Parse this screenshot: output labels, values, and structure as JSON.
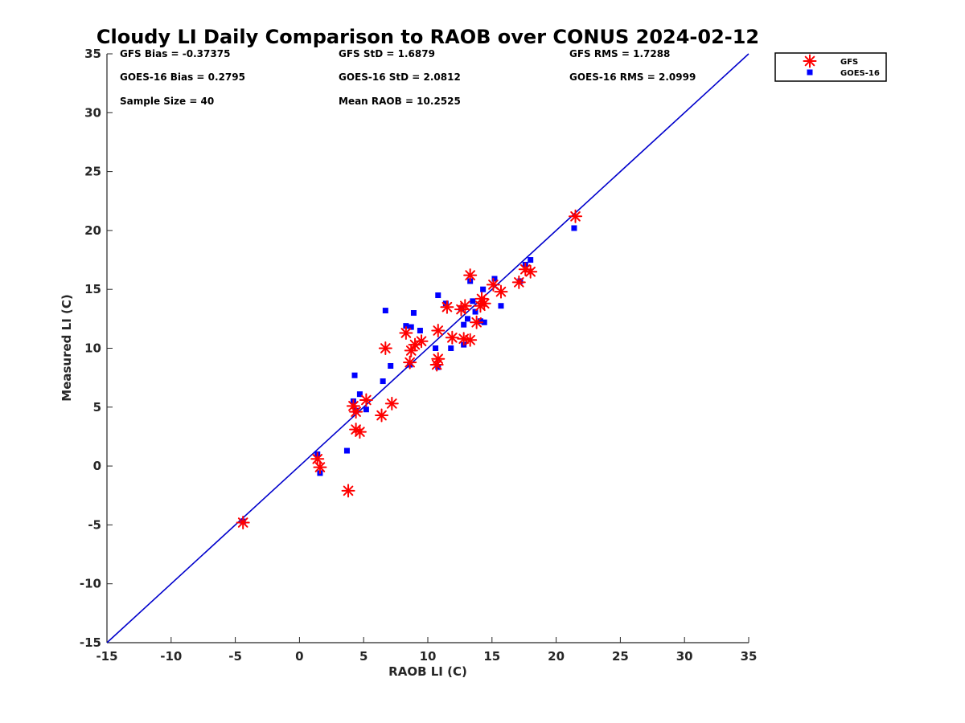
{
  "chart_data": {
    "type": "scatter",
    "title": "Cloudy LI Daily Comparison to RAOB over CONUS 2024-02-12",
    "xlabel": "RAOB LI (C)",
    "ylabel": "Measured LI (C)",
    "xlim": [
      -15,
      35
    ],
    "ylim": [
      -15,
      35
    ],
    "xticks": [
      -15,
      -10,
      -5,
      0,
      5,
      10,
      15,
      20,
      25,
      30,
      35
    ],
    "yticks": [
      -15,
      -10,
      -5,
      0,
      5,
      10,
      15,
      20,
      25,
      30,
      35
    ],
    "grid": false,
    "legend_position": "outside-top-right",
    "reference_line": {
      "from": [
        -15,
        -15
      ],
      "to": [
        35,
        35
      ],
      "color": "#0000cc"
    },
    "stats": [
      {
        "text": "GFS Bias = -0.37375"
      },
      {
        "text": "GFS StD = 1.6879"
      },
      {
        "text": "GFS RMS = 1.7288"
      },
      {
        "text": "GOES-16 Bias = 0.2795"
      },
      {
        "text": "GOES-16 StD = 2.0812"
      },
      {
        "text": "GOES-16 RMS = 2.0999"
      },
      {
        "text": "Sample Size = 40"
      },
      {
        "text": "Mean RAOB = 10.2525"
      }
    ],
    "series": [
      {
        "name": "GFS",
        "marker": "asterisk",
        "color": "#ff0000",
        "points": [
          [
            -4.4,
            -4.8
          ],
          [
            1.4,
            0.6
          ],
          [
            1.6,
            -0.1
          ],
          [
            3.8,
            -2.1
          ],
          [
            4.2,
            5.1
          ],
          [
            4.4,
            4.6
          ],
          [
            4.4,
            3.1
          ],
          [
            4.7,
            2.9
          ],
          [
            5.2,
            5.6
          ],
          [
            6.4,
            4.3
          ],
          [
            7.2,
            5.3
          ],
          [
            6.7,
            10.0
          ],
          [
            8.3,
            11.3
          ],
          [
            8.6,
            8.8
          ],
          [
            8.7,
            9.8
          ],
          [
            9.0,
            10.3
          ],
          [
            9.5,
            10.6
          ],
          [
            10.7,
            8.6
          ],
          [
            10.8,
            9.1
          ],
          [
            10.8,
            11.5
          ],
          [
            11.5,
            13.5
          ],
          [
            11.9,
            10.9
          ],
          [
            12.6,
            13.3
          ],
          [
            12.9,
            13.6
          ],
          [
            12.8,
            10.8
          ],
          [
            13.3,
            10.7
          ],
          [
            13.3,
            16.2
          ],
          [
            13.8,
            12.2
          ],
          [
            14.1,
            13.6
          ],
          [
            14.2,
            14.2
          ],
          [
            14.4,
            13.8
          ],
          [
            15.1,
            15.4
          ],
          [
            15.7,
            14.8
          ],
          [
            17.1,
            15.6
          ],
          [
            17.6,
            16.7
          ],
          [
            18.0,
            16.5
          ],
          [
            21.5,
            21.2
          ]
        ]
      },
      {
        "name": "GOES-16",
        "marker": "square",
        "color": "#0000ff",
        "points": [
          [
            -4.4,
            -4.7
          ],
          [
            1.4,
            1.0
          ],
          [
            1.6,
            -0.6
          ],
          [
            3.7,
            1.3
          ],
          [
            4.2,
            5.5
          ],
          [
            4.3,
            7.7
          ],
          [
            4.4,
            4.7
          ],
          [
            4.7,
            6.1
          ],
          [
            5.2,
            4.8
          ],
          [
            6.5,
            7.2
          ],
          [
            6.7,
            13.2
          ],
          [
            7.1,
            8.5
          ],
          [
            8.3,
            11.9
          ],
          [
            8.6,
            8.6
          ],
          [
            8.7,
            11.8
          ],
          [
            8.9,
            13.0
          ],
          [
            9.4,
            11.5
          ],
          [
            10.6,
            10.0
          ],
          [
            10.8,
            8.4
          ],
          [
            10.8,
            14.5
          ],
          [
            11.4,
            13.8
          ],
          [
            11.8,
            10.0
          ],
          [
            12.6,
            13.4
          ],
          [
            12.8,
            12.0
          ],
          [
            12.8,
            10.3
          ],
          [
            13.1,
            12.5
          ],
          [
            13.3,
            15.7
          ],
          [
            13.5,
            14.0
          ],
          [
            13.7,
            13.1
          ],
          [
            14.1,
            12.3
          ],
          [
            14.3,
            15.0
          ],
          [
            14.4,
            12.2
          ],
          [
            15.2,
            15.9
          ],
          [
            15.7,
            13.6
          ],
          [
            17.2,
            15.7
          ],
          [
            17.6,
            17.1
          ],
          [
            18.0,
            17.5
          ],
          [
            21.4,
            20.2
          ]
        ]
      }
    ]
  }
}
